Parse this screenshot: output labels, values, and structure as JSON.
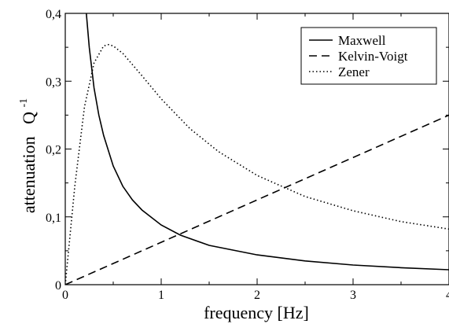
{
  "chart_data": {
    "type": "line",
    "xlabel": "frequency [Hz]",
    "ylabel": "attenuation",
    "ylabel_symbol": "Q",
    "ylabel_exponent": "-1",
    "xlim": [
      0,
      4
    ],
    "ylim": [
      0,
      0.4
    ],
    "x_ticks": [
      0,
      1,
      2,
      3,
      4
    ],
    "x_tick_labels": [
      "0",
      "1",
      "2",
      "3",
      "4"
    ],
    "y_ticks": [
      0,
      0.1,
      0.2,
      0.3,
      0.4
    ],
    "y_tick_labels": [
      "0",
      "0,1",
      "0,2",
      "0,3",
      "0,4"
    ],
    "grid": false,
    "legend_position": "top-right",
    "series": [
      {
        "name": "Maxwell",
        "style": "solid",
        "color": "#000000",
        "x": [
          0.22,
          0.25,
          0.3,
          0.35,
          0.4,
          0.5,
          0.6,
          0.7,
          0.8,
          1.0,
          1.2,
          1.5,
          2.0,
          2.5,
          3.0,
          3.5,
          4.0
        ],
        "y": [
          0.4,
          0.35,
          0.29,
          0.25,
          0.22,
          0.175,
          0.145,
          0.125,
          0.11,
          0.088,
          0.073,
          0.058,
          0.044,
          0.035,
          0.029,
          0.025,
          0.022
        ]
      },
      {
        "name": "Kelvin-Voigt",
        "style": "dashed",
        "color": "#000000",
        "x": [
          0,
          4
        ],
        "y": [
          0,
          0.25
        ]
      },
      {
        "name": "Zener",
        "style": "dotted",
        "color": "#000000",
        "x": [
          0,
          0.1,
          0.2,
          0.3,
          0.4,
          0.45,
          0.5,
          0.6,
          0.8,
          1.0,
          1.3,
          1.6,
          2.0,
          2.5,
          3.0,
          3.5,
          4.0
        ],
        "y": [
          0,
          0.146,
          0.262,
          0.327,
          0.352,
          0.354,
          0.352,
          0.341,
          0.308,
          0.274,
          0.23,
          0.196,
          0.161,
          0.13,
          0.109,
          0.093,
          0.082
        ]
      }
    ]
  }
}
